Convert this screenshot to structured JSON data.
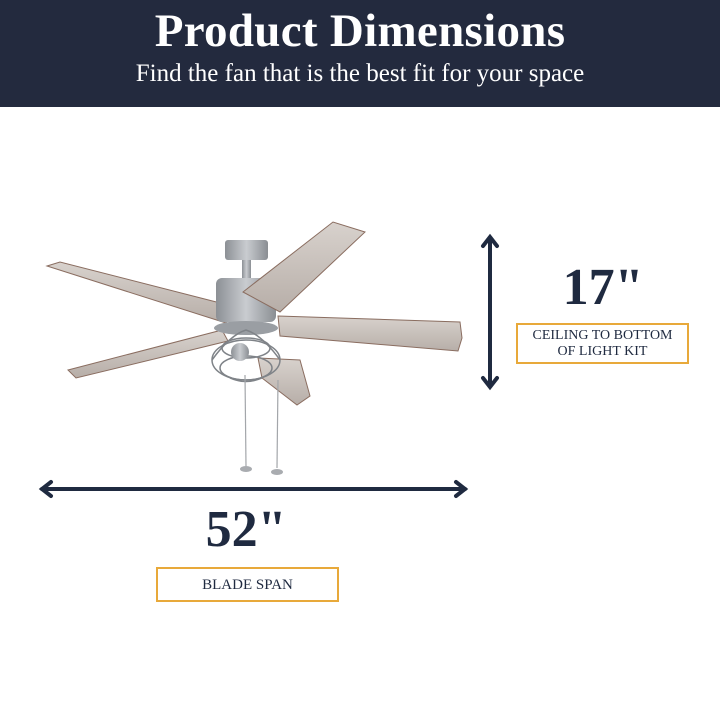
{
  "header": {
    "title": "Product Dimensions",
    "subtitle": "Find the fan that is the best fit for your space"
  },
  "height_dimension": {
    "value": "17\"",
    "label_line1": "CEILING TO BOTTOM",
    "label_line2": "OF LIGHT KIT"
  },
  "span_dimension": {
    "value": "52\"",
    "label": "BLADE SPAN"
  },
  "colors": {
    "header_bg": "#232a3e",
    "accent_border": "#e8a93a",
    "arrow": "#1f2a40"
  }
}
